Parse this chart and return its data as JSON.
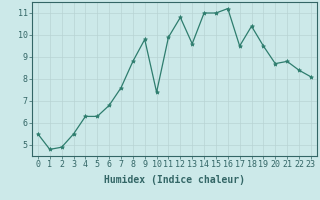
{
  "x": [
    0,
    1,
    2,
    3,
    4,
    5,
    6,
    7,
    8,
    9,
    10,
    11,
    12,
    13,
    14,
    15,
    16,
    17,
    18,
    19,
    20,
    21,
    22,
    23
  ],
  "y": [
    5.5,
    4.8,
    4.9,
    5.5,
    6.3,
    6.3,
    6.8,
    7.6,
    8.8,
    9.8,
    7.4,
    9.9,
    10.8,
    9.6,
    11.0,
    11.0,
    11.2,
    9.5,
    10.4,
    9.5,
    8.7,
    8.8,
    8.4,
    8.1
  ],
  "xlabel": "Humidex (Indice chaleur)",
  "xlim": [
    -0.5,
    23.5
  ],
  "ylim": [
    4.5,
    11.5
  ],
  "yticks": [
    5,
    6,
    7,
    8,
    9,
    10,
    11
  ],
  "xticks": [
    0,
    1,
    2,
    3,
    4,
    5,
    6,
    7,
    8,
    9,
    10,
    11,
    12,
    13,
    14,
    15,
    16,
    17,
    18,
    19,
    20,
    21,
    22,
    23
  ],
  "line_color": "#2e7d6e",
  "marker": "*",
  "marker_size": 3,
  "bg_color": "#cce9e9",
  "grid_color": "#b8d4d4",
  "axis_color": "#336666",
  "xlabel_fontsize": 7,
  "tick_fontsize": 6,
  "linewidth": 0.9
}
